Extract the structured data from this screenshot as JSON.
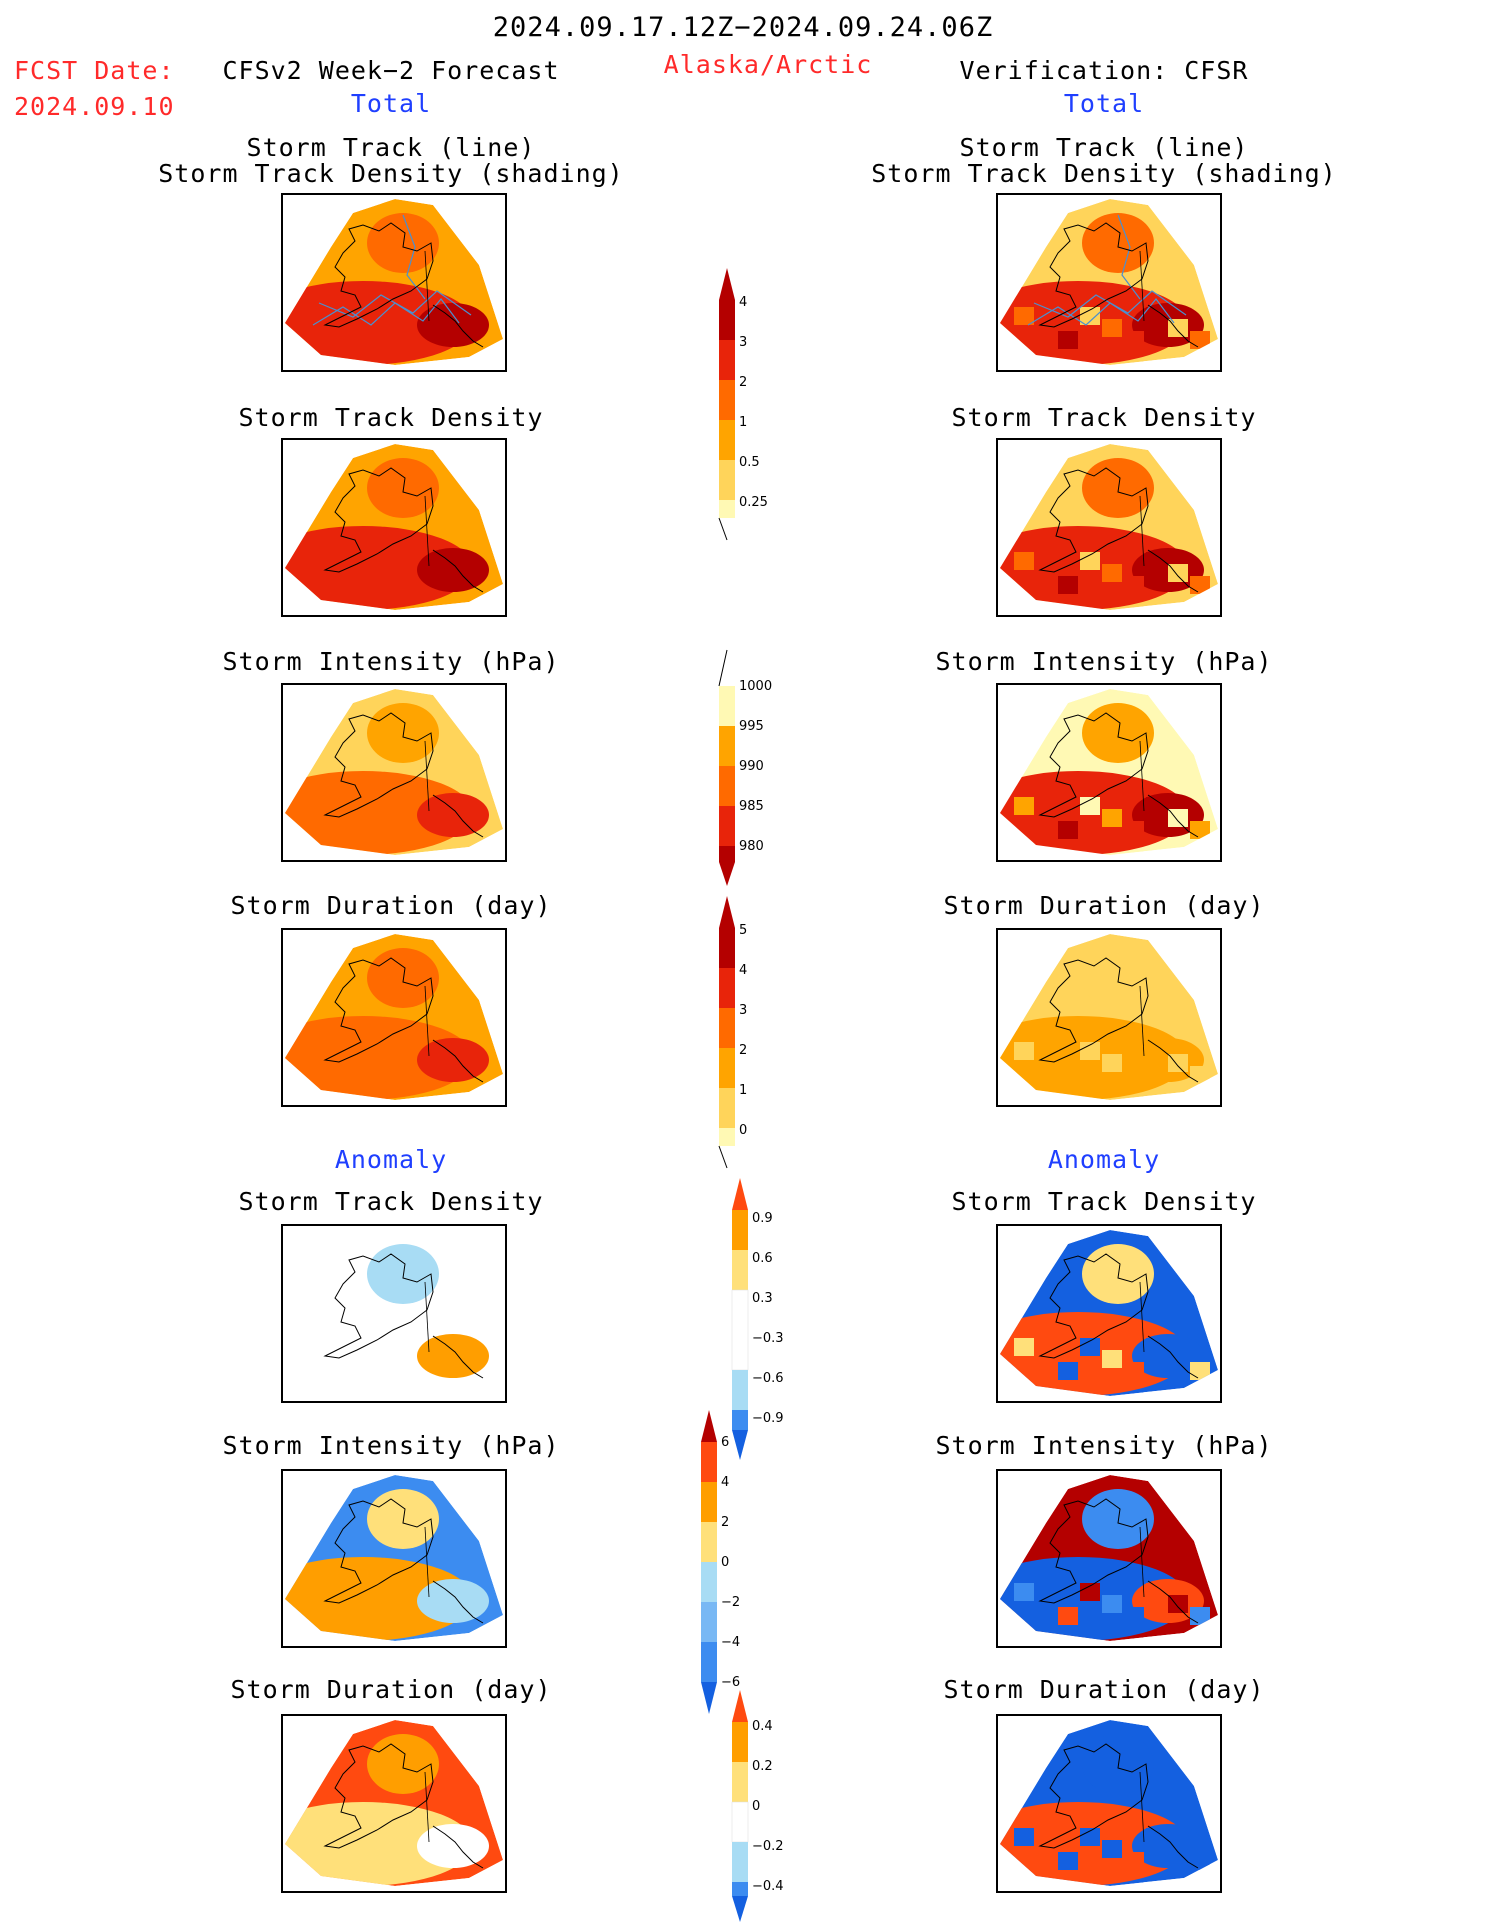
{
  "header": {
    "date_range": "2024.09.17.12Z−2024.09.24.06Z",
    "fcst_label": "FCST Date:",
    "fcst_date": "2024.09.10",
    "left_title": "CFSv2 Week−2 Forecast",
    "region": "Alaska/Arctic",
    "right_title": "Verification: CFSR",
    "left_total": "Total",
    "right_total": "Total"
  },
  "sections": {
    "anomaly_left": "Anomaly",
    "anomaly_right": "Anomaly"
  },
  "panel_titles": {
    "track_line": "Storm Track (line)",
    "track_shading": "Storm Track Density (shading)",
    "density": "Storm Track Density",
    "intensity": "Storm Intensity (hPa)",
    "duration": "Storm Duration (day)"
  },
  "colorbars": {
    "density": [
      "4",
      "3",
      "2",
      "1",
      "0.5",
      "0.25"
    ],
    "intensity": [
      "1000",
      "995",
      "990",
      "985",
      "980"
    ],
    "duration": [
      "5",
      "4",
      "3",
      "2",
      "1",
      "0"
    ],
    "density_anom": [
      "0.9",
      "0.6",
      "0.3",
      "−0.3",
      "−0.6",
      "−0.9"
    ],
    "intensity_anom": [
      "6",
      "4",
      "2",
      "0",
      "−2",
      "−4",
      "−6"
    ],
    "duration_anom": [
      "0.4",
      "0.2",
      "0",
      "−0.2",
      "−0.4"
    ]
  },
  "palettes": {
    "warm": [
      "#fff9b4",
      "#ffd45a",
      "#ffa400",
      "#ff6a00",
      "#e8240a",
      "#b40000"
    ],
    "diverging": [
      "#1460e0",
      "#3c8cf0",
      "#a8dcf4",
      "#ffffff",
      "#ffe07a",
      "#ff9e00",
      "#ff4a10",
      "#b40000"
    ]
  }
}
